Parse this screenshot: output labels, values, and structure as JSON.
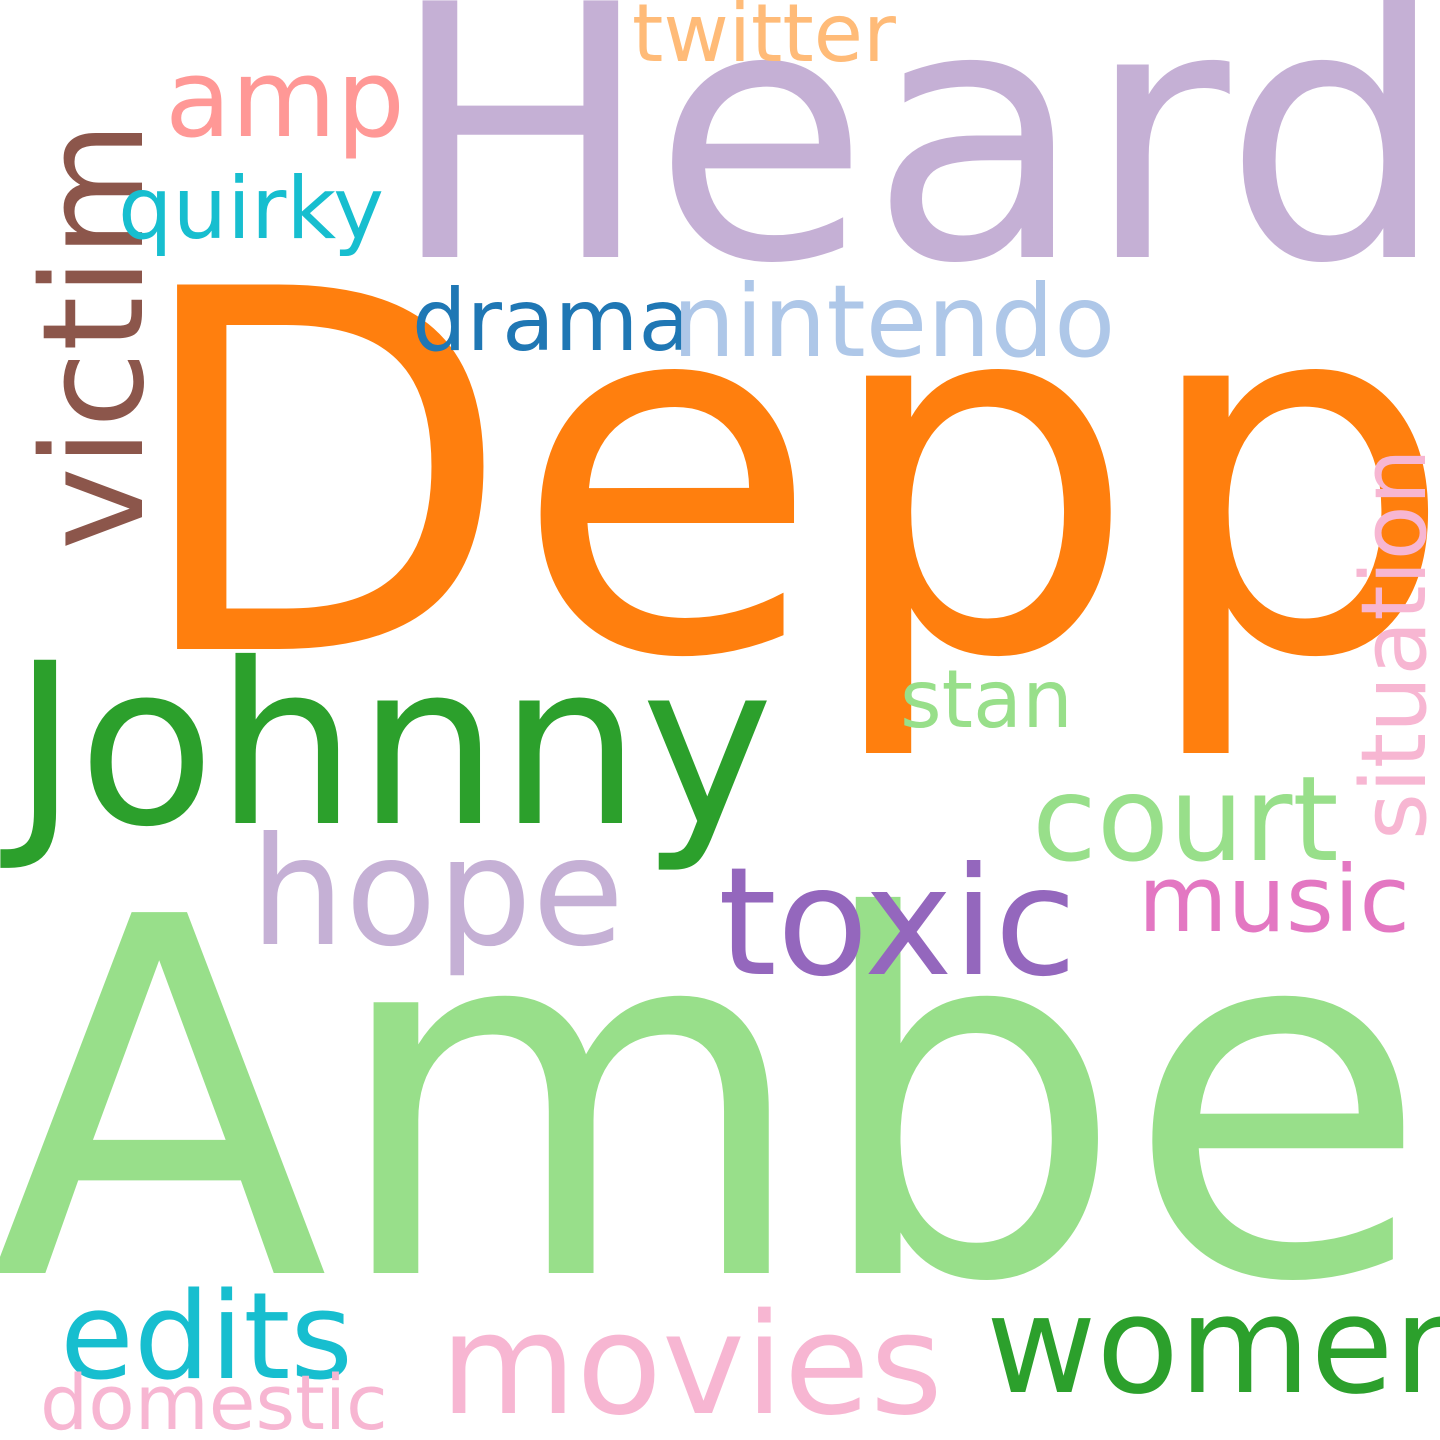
{
  "words": [
    {
      "key": "depp",
      "text": "Depp",
      "color": "#ff7f0e"
    },
    {
      "key": "heard",
      "text": "Heard",
      "color": "#c5b0d5"
    },
    {
      "key": "amber",
      "text": "Amber",
      "color": "#98df8a"
    },
    {
      "key": "johnny",
      "text": "Johnny",
      "color": "#2ca02c"
    },
    {
      "key": "victim",
      "text": "victim",
      "color": "#8c564b"
    },
    {
      "key": "amp",
      "text": "amp",
      "color": "#ff9896"
    },
    {
      "key": "twitter",
      "text": "twitter",
      "color": "#ffbb78"
    },
    {
      "key": "quirky",
      "text": "quirky",
      "color": "#17becf"
    },
    {
      "key": "drama",
      "text": "drama",
      "color": "#1f77b4"
    },
    {
      "key": "nintendo",
      "text": "nintendo",
      "color": "#aec7e8"
    },
    {
      "key": "situation",
      "text": "situation",
      "color": "#f7b6d2"
    },
    {
      "key": "stan",
      "text": "stan",
      "color": "#98df8a"
    },
    {
      "key": "court",
      "text": "court",
      "color": "#98df8a"
    },
    {
      "key": "hope",
      "text": "hope",
      "color": "#c5b0d5"
    },
    {
      "key": "toxic",
      "text": "toxic",
      "color": "#9467bd"
    },
    {
      "key": "music",
      "text": "music",
      "color": "#e377c2"
    },
    {
      "key": "edits",
      "text": "edits",
      "color": "#17becf"
    },
    {
      "key": "movies",
      "text": "movies",
      "color": "#f7b6d2"
    },
    {
      "key": "women",
      "text": "women",
      "color": "#2ca02c"
    },
    {
      "key": "domestic",
      "text": "domestic",
      "color": "#f7b6d2"
    }
  ]
}
